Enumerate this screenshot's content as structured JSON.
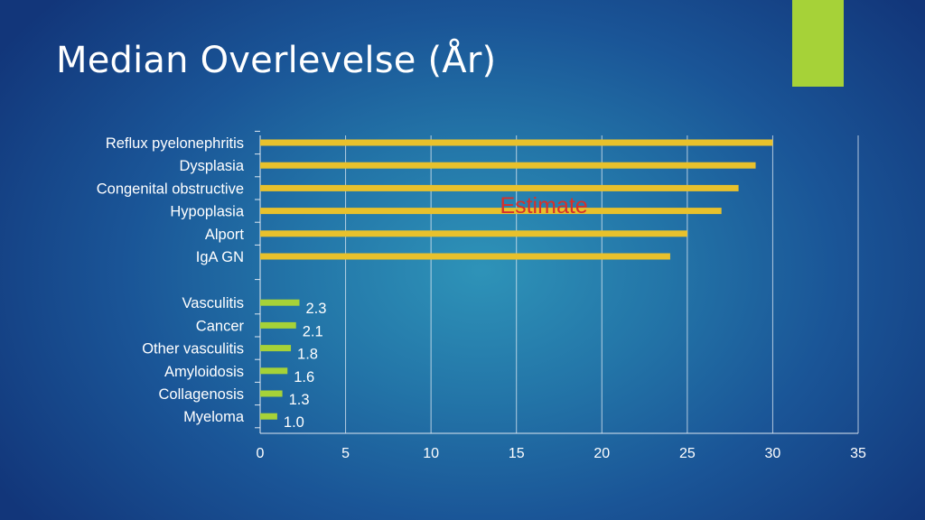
{
  "slide": {
    "title": "Median Overlevelse (År)",
    "accent_color": "#a6d238"
  },
  "chart_data": {
    "type": "bar",
    "orientation": "horizontal",
    "title": "",
    "xlabel": "",
    "ylabel": "",
    "xlim": [
      0,
      35
    ],
    "xticks": [
      0,
      5,
      10,
      15,
      20,
      25,
      30,
      35
    ],
    "grid": true,
    "legend": "none",
    "groups": [
      {
        "color": "#e8c12c",
        "show_values": false,
        "categories": [
          "Reflux pyelonephritis",
          "Dysplasia",
          "Congenital obstructive",
          "Hypoplasia",
          "Alport",
          "IgA GN"
        ],
        "values": [
          30,
          29,
          28,
          27,
          25,
          24
        ]
      },
      {
        "color": "#a6d238",
        "show_values": true,
        "categories": [
          "Vasculitis",
          "Cancer",
          "Other vasculitis",
          "Amyloidosis",
          "Collagenosis",
          "Myeloma"
        ],
        "values": [
          2.3,
          2.1,
          1.8,
          1.6,
          1.3,
          1.0
        ],
        "value_labels": [
          "2.3",
          "2.1",
          "1.8",
          "1.6",
          "1.3",
          "1.0"
        ]
      }
    ],
    "annotations": [
      {
        "text": "Estimate",
        "color": "#d7302a",
        "x": 16.5
      }
    ]
  }
}
